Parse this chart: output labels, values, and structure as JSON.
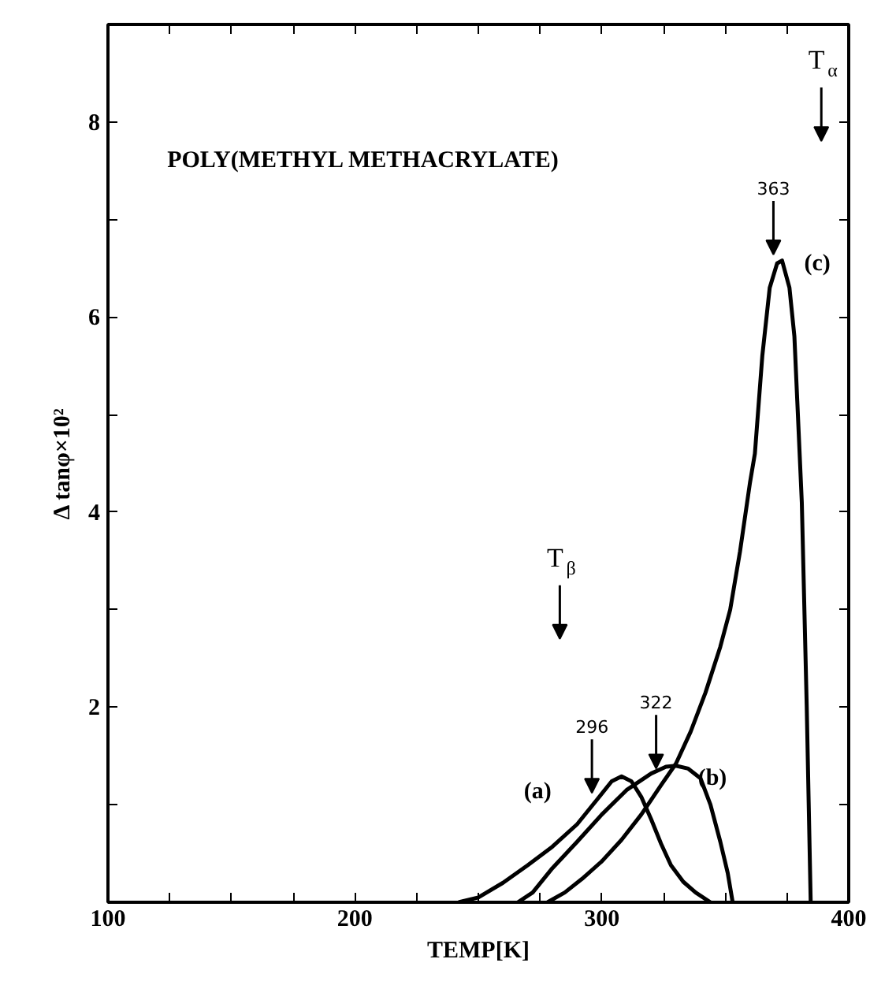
{
  "chart_data": {
    "type": "line",
    "xlabel": "TEMP[K]",
    "ylabel": "Δ tanφ×10²",
    "xlim": [
      100,
      400
    ],
    "ylim": [
      0,
      9
    ],
    "xticks": [
      100,
      {
        "value": 125,
        "label": null
      },
      {
        "value": 150,
        "label": null
      },
      {
        "value": 175,
        "label": null
      },
      200,
      {
        "value": 225,
        "label": null
      },
      {
        "value": 250,
        "label": null
      },
      {
        "value": 275,
        "label": null
      },
      300,
      {
        "value": 325,
        "label": null
      },
      {
        "value": 350,
        "label": null
      },
      {
        "value": 375,
        "label": null
      },
      400
    ],
    "yticks": [
      {
        "value": 1,
        "label": null
      },
      2,
      {
        "value": 3,
        "label": null
      },
      4,
      {
        "value": 5,
        "label": null
      },
      6,
      {
        "value": 7,
        "label": null
      },
      8
    ],
    "grid": false,
    "marker": "none",
    "line_style": "solid",
    "series": [
      {
        "name": "(a)",
        "color": "#000000",
        "x": [
          242,
          250,
          260,
          270,
          280,
          290,
          298,
          304,
          308,
          312,
          316,
          320,
          324,
          328,
          333,
          338,
          344
        ],
        "values": [
          0,
          0.05,
          0.2,
          0.38,
          0.57,
          0.8,
          1.05,
          1.24,
          1.29,
          1.24,
          1.08,
          0.85,
          0.6,
          0.38,
          0.21,
          0.1,
          0
        ]
      },
      {
        "name": "(b)",
        "color": "#000000",
        "x": [
          266,
          272,
          280,
          290,
          300,
          310,
          320,
          326,
          330,
          335,
          340,
          344,
          348,
          351,
          353
        ],
        "values": [
          0,
          0.1,
          0.35,
          0.62,
          0.9,
          1.15,
          1.32,
          1.39,
          1.4,
          1.37,
          1.27,
          1.0,
          0.62,
          0.3,
          0
        ]
      },
      {
        "name": "(c)",
        "color": "#000000",
        "x": [
          278,
          285,
          292,
          300,
          308,
          316,
          324,
          330,
          336,
          342,
          348,
          352,
          356,
          360,
          362,
          365,
          368,
          371,
          373,
          376,
          378,
          381,
          383,
          384.6
        ],
        "values": [
          0,
          0.1,
          0.24,
          0.42,
          0.64,
          0.9,
          1.2,
          1.42,
          1.75,
          2.15,
          2.62,
          3.0,
          3.6,
          4.3,
          4.6,
          5.6,
          6.3,
          6.55,
          6.58,
          6.3,
          5.8,
          4.1,
          2.0,
          0
        ]
      }
    ],
    "annotations": [
      "POLY(METHYL METHACRYLATE)",
      {
        "text": "296",
        "x": 296,
        "y": 1.12
      },
      {
        "text": "322",
        "x": 322,
        "y": 1.37
      },
      {
        "text": "363",
        "x": 369.5,
        "y": 6.64
      },
      "T$_{β}$",
      "T$_{α}$"
    ]
  }
}
